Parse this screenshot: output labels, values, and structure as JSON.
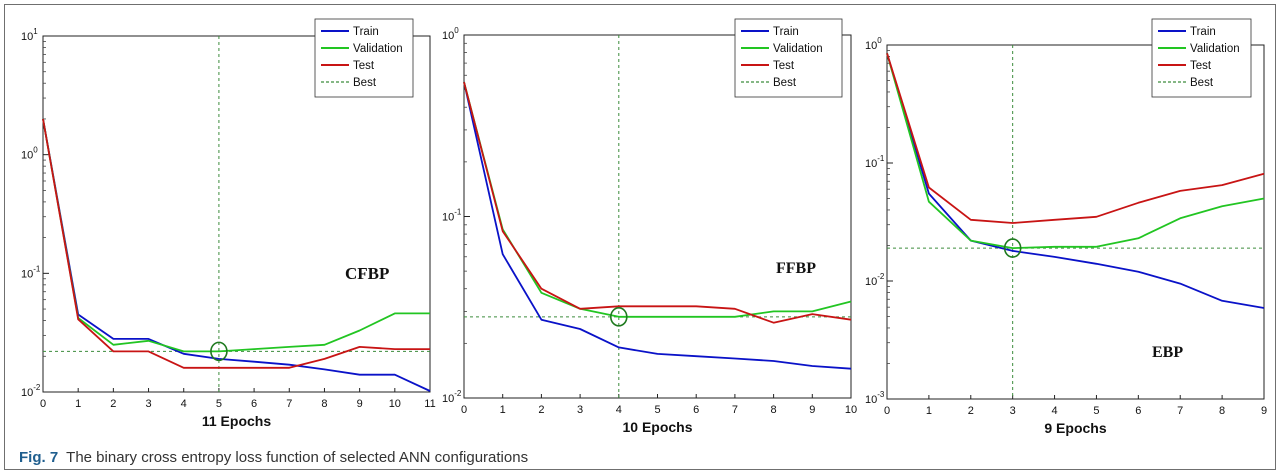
{
  "chart_data": [
    {
      "type": "line",
      "yscale": "log",
      "xlim": [
        0,
        11
      ],
      "ylim": [
        0.01,
        10
      ],
      "xticks": [
        0,
        1,
        2,
        3,
        4,
        5,
        6,
        7,
        8,
        9,
        10,
        11
      ],
      "yticks": [
        {
          "v": 10,
          "base": "10",
          "exp": "1"
        },
        {
          "v": 1,
          "base": "10",
          "exp": "0"
        },
        {
          "v": 0.1,
          "base": "10",
          "exp": "-1"
        },
        {
          "v": 0.01,
          "base": "10",
          "exp": "-2"
        }
      ],
      "xlabel": "11 Epochs",
      "annotation": "CFBP",
      "legend_position": "top-right",
      "x": [
        0,
        1,
        2,
        3,
        4,
        5,
        6,
        7,
        8,
        9,
        10,
        11
      ],
      "series": [
        {
          "name": "Train",
          "color": "#0a12c8",
          "values": [
            2.0,
            0.045,
            0.028,
            0.028,
            0.021,
            0.019,
            0.018,
            0.017,
            0.0155,
            0.014,
            0.014,
            0.0102
          ]
        },
        {
          "name": "Validation",
          "color": "#22c522",
          "values": [
            2.0,
            0.042,
            0.025,
            0.027,
            0.022,
            0.022,
            0.023,
            0.024,
            0.025,
            0.033,
            0.046,
            0.046
          ]
        },
        {
          "name": "Test",
          "color": "#c81414",
          "values": [
            2.0,
            0.041,
            0.022,
            0.022,
            0.016,
            0.016,
            0.016,
            0.016,
            0.019,
            0.024,
            0.023,
            0.023
          ]
        }
      ],
      "best": {
        "name": "Best",
        "epoch": 5,
        "value": 0.022,
        "color": "#3c8c3c"
      }
    },
    {
      "type": "line",
      "yscale": "log",
      "xlim": [
        0,
        10
      ],
      "ylim": [
        0.01,
        1
      ],
      "xticks": [
        0,
        1,
        2,
        3,
        4,
        5,
        6,
        7,
        8,
        9,
        10
      ],
      "yticks": [
        {
          "v": 1,
          "base": "10",
          "exp": "0"
        },
        {
          "v": 0.1,
          "base": "10",
          "exp": "-1"
        },
        {
          "v": 0.01,
          "base": "10",
          "exp": "-2"
        }
      ],
      "xlabel": "10 Epochs",
      "annotation": "FFBP",
      "legend_position": "top-right",
      "x": [
        0,
        1,
        2,
        3,
        4,
        5,
        6,
        7,
        8,
        9,
        10
      ],
      "series": [
        {
          "name": "Train",
          "color": "#0a12c8",
          "values": [
            0.55,
            0.062,
            0.027,
            0.024,
            0.019,
            0.0175,
            0.017,
            0.0165,
            0.016,
            0.015,
            0.0145
          ]
        },
        {
          "name": "Validation",
          "color": "#22c522",
          "values": [
            0.55,
            0.085,
            0.038,
            0.031,
            0.028,
            0.028,
            0.028,
            0.028,
            0.03,
            0.03,
            0.034
          ]
        },
        {
          "name": "Test",
          "color": "#c81414",
          "values": [
            0.55,
            0.083,
            0.04,
            0.031,
            0.032,
            0.032,
            0.032,
            0.031,
            0.026,
            0.029,
            0.027
          ]
        }
      ],
      "best": {
        "name": "Best",
        "epoch": 4,
        "value": 0.028,
        "color": "#3c8c3c"
      }
    },
    {
      "type": "line",
      "yscale": "log",
      "xlim": [
        0,
        9
      ],
      "ylim": [
        0.001,
        1
      ],
      "xticks": [
        0,
        1,
        2,
        3,
        4,
        5,
        6,
        7,
        8,
        9
      ],
      "yticks": [
        {
          "v": 1,
          "base": "10",
          "exp": "0"
        },
        {
          "v": 0.1,
          "base": "10",
          "exp": "-1"
        },
        {
          "v": 0.01,
          "base": "10",
          "exp": "-2"
        },
        {
          "v": 0.001,
          "base": "10",
          "exp": "-3"
        }
      ],
      "xlabel": "9 Epochs",
      "annotation": "EBP",
      "legend_position": "top-right",
      "x": [
        0,
        1,
        2,
        3,
        4,
        5,
        6,
        7,
        8,
        9
      ],
      "series": [
        {
          "name": "Train",
          "color": "#0a12c8",
          "values": [
            0.85,
            0.055,
            0.022,
            0.018,
            0.016,
            0.014,
            0.012,
            0.0095,
            0.0068,
            0.0059
          ]
        },
        {
          "name": "Validation",
          "color": "#22c522",
          "values": [
            0.85,
            0.047,
            0.022,
            0.019,
            0.0195,
            0.0195,
            0.023,
            0.034,
            0.043,
            0.05
          ]
        },
        {
          "name": "Test",
          "color": "#c81414",
          "values": [
            0.85,
            0.062,
            0.033,
            0.031,
            0.033,
            0.035,
            0.046,
            0.058,
            0.065,
            0.081
          ]
        }
      ],
      "best": {
        "name": "Best",
        "epoch": 3,
        "value": 0.019,
        "color": "#3c8c3c"
      }
    }
  ],
  "caption": {
    "label": "Fig. 7",
    "text": "The binary cross entropy loss function of selected ANN configurations"
  }
}
